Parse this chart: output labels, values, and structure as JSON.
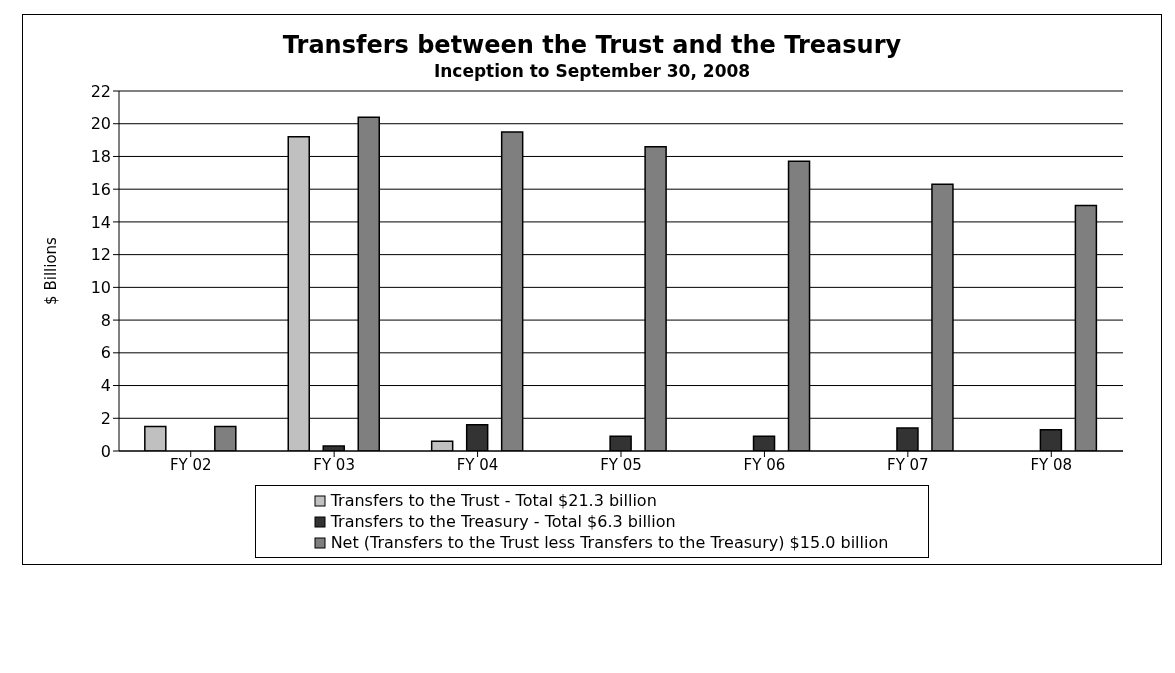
{
  "chart_data": {
    "type": "bar",
    "title": "Transfers between the Trust and the Treasury",
    "subtitle": "Inception to September 30, 2008",
    "ylabel": "$ Billions",
    "categories": [
      "FY 02",
      "FY 03",
      "FY 04",
      "FY 05",
      "FY 06",
      "FY 07",
      "FY 08"
    ],
    "series": [
      {
        "name": "Transfers to the Trust - Total $21.3 billion",
        "color": "#c0c0c0",
        "values": [
          1.5,
          19.2,
          0.6,
          0,
          0,
          0,
          0
        ]
      },
      {
        "name": "Transfers to the Treasury - Total $6.3 billion",
        "color": "#333333",
        "values": [
          0,
          0.3,
          1.6,
          0.9,
          0.9,
          1.4,
          1.3
        ]
      },
      {
        "name": "Net (Transfers to the Trust less Transfers to the Treasury) $15.0 billion",
        "color": "#7f7f7f",
        "values": [
          1.5,
          20.4,
          19.5,
          18.6,
          17.7,
          16.3,
          15.0
        ]
      }
    ],
    "ylim": [
      0,
      22
    ],
    "yticks": [
      0,
      2,
      4,
      6,
      8,
      10,
      12,
      14,
      16,
      18,
      20,
      22
    ],
    "grid": "y",
    "legend": "bottom"
  }
}
